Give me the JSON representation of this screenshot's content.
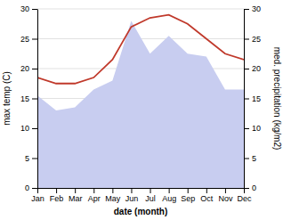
{
  "chart_data": {
    "type": "line",
    "categories": [
      "Jan",
      "Feb",
      "Mar",
      "Apr",
      "May",
      "Jun",
      "Jul",
      "Aug",
      "Sep",
      "Oct",
      "Nov",
      "Dec"
    ],
    "xlabel": "date (month)",
    "ylabel": "max temp (C)",
    "y2label": "med. precipitation (kg/m2)",
    "series": [
      {
        "type": "area",
        "axis": "y2",
        "color": "#c8cdf0",
        "values": [
          15.5,
          13.0,
          13.5,
          16.5,
          18.0,
          28.0,
          22.5,
          25.5,
          22.5,
          22.0,
          16.5,
          16.5
        ]
      },
      {
        "type": "line",
        "color": "#c0392b",
        "values": [
          18.5,
          17.5,
          17.5,
          18.5,
          21.5,
          27.0,
          28.5,
          29.0,
          27.5,
          25.0,
          22.5,
          21.5
        ]
      }
    ],
    "ylim": [
      0,
      30
    ],
    "yticks": [
      0,
      5,
      10,
      15,
      20,
      25,
      30
    ],
    "y2lim": [
      0,
      30
    ],
    "y2ticks": [
      0,
      5,
      10,
      15,
      20,
      25,
      30
    ],
    "grid": true
  }
}
